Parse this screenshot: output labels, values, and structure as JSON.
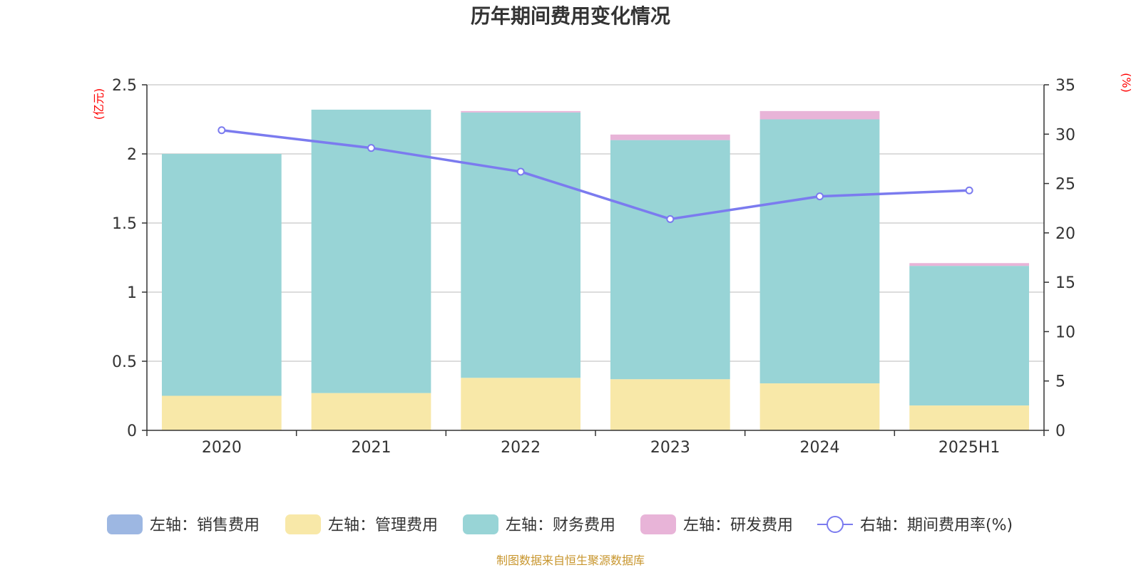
{
  "colors": {
    "sales": "#9db7e2",
    "admin": "#f8e8a8",
    "finance": "#98d4d6",
    "rd": "#e8b4d8",
    "rate": "#7b7bef",
    "axis": "#333333",
    "grid": "#c8c8c8",
    "unit": "#ff0000",
    "source": "#c8962e"
  },
  "chart_data": {
    "type": "bar",
    "title": "历年期间费用变化情况",
    "categories": [
      "2020",
      "2021",
      "2022",
      "2023",
      "2024",
      "2025H1"
    ],
    "y_left": {
      "unit": "(亿元)",
      "ylim": [
        0,
        2.5
      ],
      "ticks": [
        "0",
        "0.5",
        "1",
        "1.5",
        "2",
        "2.5"
      ]
    },
    "y_right": {
      "unit": "(%)",
      "ylim": [
        0,
        35
      ],
      "ticks": [
        "0",
        "5",
        "10",
        "15",
        "20",
        "25",
        "30",
        "35"
      ]
    },
    "series": [
      {
        "name": "左轴：销售费用",
        "kind": "bar",
        "axis": "left",
        "color": "#9db7e2",
        "values": [
          0,
          0,
          0,
          0,
          0,
          0
        ]
      },
      {
        "name": "左轴：管理费用",
        "kind": "bar",
        "axis": "left",
        "color": "#f8e8a8",
        "values": [
          0.25,
          0.27,
          0.38,
          0.37,
          0.34,
          0.18
        ]
      },
      {
        "name": "左轴：财务费用",
        "kind": "bar",
        "axis": "left",
        "color": "#98d4d6",
        "values": [
          1.75,
          2.05,
          1.92,
          1.73,
          1.91,
          1.01
        ]
      },
      {
        "name": "左轴：研发费用",
        "kind": "bar",
        "axis": "left",
        "color": "#e8b4d8",
        "values": [
          0,
          0,
          0.01,
          0.04,
          0.06,
          0.02
        ]
      },
      {
        "name": "右轴：期间费用率(%)",
        "kind": "line",
        "axis": "right",
        "color": "#7b7bef",
        "values": [
          30.4,
          28.6,
          26.2,
          21.4,
          23.7,
          24.3
        ]
      }
    ],
    "grid": true,
    "legend_position": "bottom"
  },
  "source": "制图数据来自恒生聚源数据库"
}
